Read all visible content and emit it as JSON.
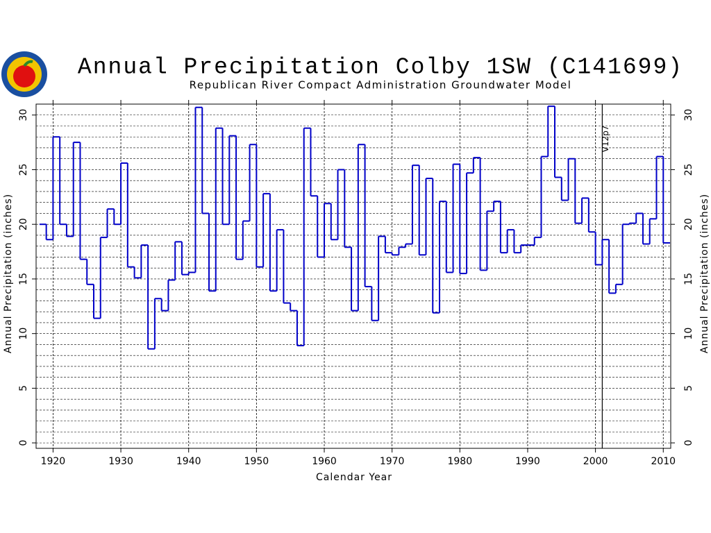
{
  "chart_data": {
    "type": "step",
    "title": "Annual Precipitation Colby 1SW (C141699)",
    "subtitle": "Republican River Compact Administration Groundwater Model",
    "xlabel": "Calendar Year",
    "ylabel": "Annual Precipitation (inches)",
    "y2label": "Annual Precipitation (inches)",
    "x": [
      1918,
      1919,
      1920,
      1921,
      1922,
      1923,
      1924,
      1925,
      1926,
      1927,
      1928,
      1929,
      1930,
      1931,
      1932,
      1933,
      1934,
      1935,
      1936,
      1937,
      1938,
      1939,
      1940,
      1941,
      1942,
      1943,
      1944,
      1945,
      1946,
      1947,
      1948,
      1949,
      1950,
      1951,
      1952,
      1953,
      1954,
      1955,
      1956,
      1957,
      1958,
      1959,
      1960,
      1961,
      1962,
      1963,
      1964,
      1965,
      1966,
      1967,
      1968,
      1969,
      1970,
      1971,
      1972,
      1973,
      1974,
      1975,
      1976,
      1977,
      1978,
      1979,
      1980,
      1981,
      1982,
      1983,
      1984,
      1985,
      1986,
      1987,
      1988,
      1989,
      1990,
      1991,
      1992,
      1993,
      1994,
      1995,
      1996,
      1997,
      1998,
      1999,
      2000,
      2001,
      2002,
      2003,
      2004,
      2005,
      2006,
      2007,
      2008,
      2009,
      2010
    ],
    "series": [
      {
        "name": "Annual Precipitation",
        "color": "#0000c8",
        "values": [
          20.0,
          18.6,
          28.0,
          20.0,
          18.9,
          27.5,
          16.8,
          14.5,
          11.4,
          18.8,
          21.4,
          20.0,
          25.6,
          16.1,
          15.1,
          18.1,
          8.6,
          13.2,
          12.1,
          14.9,
          18.4,
          15.4,
          15.6,
          30.7,
          21.0,
          13.9,
          28.8,
          20.0,
          28.1,
          16.8,
          20.3,
          27.3,
          16.1,
          22.8,
          13.9,
          19.5,
          12.8,
          12.1,
          8.9,
          28.8,
          22.6,
          17.0,
          21.9,
          18.6,
          25.0,
          17.9,
          12.1,
          27.3,
          14.3,
          11.2,
          18.9,
          17.4,
          17.2,
          17.9,
          18.2,
          25.4,
          17.2,
          24.2,
          11.9,
          22.1,
          15.6,
          25.5,
          15.5,
          24.7,
          26.1,
          15.8,
          21.2,
          22.1,
          17.4,
          19.5,
          17.4,
          18.1,
          18.1,
          18.8,
          26.2,
          30.8,
          24.3,
          22.2,
          26.0,
          20.1,
          22.4,
          19.3,
          16.3,
          18.6,
          13.7,
          14.5,
          20.0,
          20.1,
          21.0,
          18.2,
          20.5,
          26.2,
          18.3
        ]
      }
    ],
    "xlim": [
      1917.5,
      2011.1
    ],
    "xticks": [
      1920,
      1930,
      1940,
      1950,
      1960,
      1970,
      1980,
      1990,
      2000,
      2010
    ],
    "ylim": [
      -0.5,
      31
    ],
    "yticks": [
      0,
      5,
      10,
      15,
      20,
      25,
      30
    ],
    "yminorticks": [
      0,
      1,
      2,
      3,
      4,
      5,
      6,
      7,
      8,
      9,
      10,
      11,
      12,
      13,
      14,
      15,
      16,
      17,
      18,
      19,
      20,
      21,
      22,
      23,
      24,
      25,
      26,
      27,
      28,
      29,
      30
    ],
    "y2lim": [
      -0.5,
      31
    ],
    "y2ticks": [
      0,
      5,
      10,
      15,
      20,
      25,
      30
    ],
    "grid": true,
    "annotations": [
      {
        "text": "V12p7",
        "x": 2001
      }
    ]
  }
}
